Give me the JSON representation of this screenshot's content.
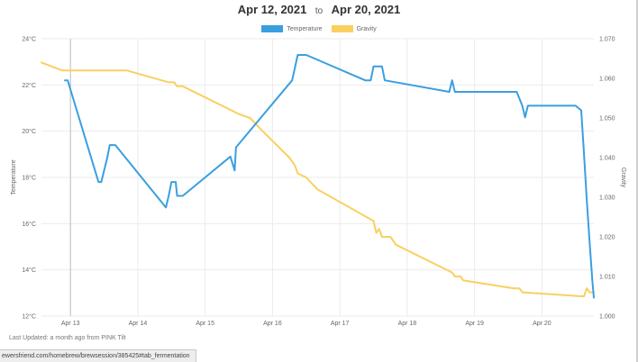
{
  "header": {
    "start_date": "Apr 12, 2021",
    "separator": "to",
    "end_date": "Apr 20, 2021"
  },
  "footer": {
    "last_updated": "Last Updated: a month ago from PINK Tilt"
  },
  "status_bar": {
    "url": "ewersfriend.com/homebrew/brewsession/385425#tab_fermentation"
  },
  "colors": {
    "temperature": "#3a9fe0",
    "gravity": "#f9d060",
    "grid": "#ebebeb",
    "cursor_line": "#bdbdbd"
  },
  "chart_data": {
    "type": "line",
    "title": "",
    "x_unit": "days",
    "x_range": [
      "Apr 12 13:40",
      "Apr 20 18:30"
    ],
    "x_tick_labels": [
      "Apr 13",
      "Apr 14",
      "Apr 15",
      "Apr 16",
      "Apr 17",
      "Apr 18",
      "Apr 19",
      "Apr 20"
    ],
    "left_axis": {
      "label": "Temperature",
      "ylim": [
        12,
        24
      ],
      "ticks": [
        "12°C",
        "14°C",
        "16°C",
        "18°C",
        "20°C",
        "22°C",
        "24°C"
      ]
    },
    "right_axis": {
      "label": "Gravity",
      "ylim": [
        1.0,
        1.07
      ],
      "ticks": [
        "1.000",
        "1.010",
        "1.020",
        "1.030",
        "1.040",
        "1.050",
        "1.060",
        "1.070"
      ]
    },
    "legend_position": "top-center",
    "series": [
      {
        "name": "Temperature",
        "axis": "left",
        "color": "#3a9fe0",
        "points": [
          [
            "Apr 12 22:00",
            22.2
          ],
          [
            "Apr 12 23:00",
            22.2
          ],
          [
            "Apr 13 00:00",
            21.8
          ],
          [
            "Apr 13 10:00",
            17.8
          ],
          [
            "Apr 13 11:00",
            17.8
          ],
          [
            "Apr 13 13:00",
            18.8
          ],
          [
            "Apr 13 14:00",
            19.4
          ],
          [
            "Apr 13 16:00",
            19.4
          ],
          [
            "Apr 14 10:00",
            16.7
          ],
          [
            "Apr 14 11:00",
            17.2
          ],
          [
            "Apr 14 12:00",
            17.8
          ],
          [
            "Apr 14 13:30",
            17.8
          ],
          [
            "Apr 14 14:00",
            17.2
          ],
          [
            "Apr 14 16:00",
            17.2
          ],
          [
            "Apr 15 09:00",
            18.9
          ],
          [
            "Apr 15 10:30",
            18.3
          ],
          [
            "Apr 15 11:00",
            19.3
          ],
          [
            "Apr 16 07:00",
            22.2
          ],
          [
            "Apr 16 09:00",
            23.3
          ],
          [
            "Apr 16 12:00",
            23.3
          ],
          [
            "Apr 17 09:00",
            22.2
          ],
          [
            "Apr 17 11:00",
            22.2
          ],
          [
            "Apr 17 12:00",
            22.8
          ],
          [
            "Apr 17 15:00",
            22.8
          ],
          [
            "Apr 17 16:00",
            22.2
          ],
          [
            "Apr 18 15:00",
            21.7
          ],
          [
            "Apr 18 16:00",
            22.2
          ],
          [
            "Apr 18 17:00",
            21.7
          ],
          [
            "Apr 19 15:00",
            21.7
          ],
          [
            "Apr 19 17:00",
            21.1
          ],
          [
            "Apr 19 18:00",
            20.6
          ],
          [
            "Apr 19 19:00",
            21.1
          ],
          [
            "Apr 20 12:00",
            21.1
          ],
          [
            "Apr 20 14:00",
            20.9
          ],
          [
            "Apr 20 15:00",
            19.0
          ],
          [
            "Apr 20 16:00",
            17.0
          ],
          [
            "Apr 20 17:00",
            15.2
          ],
          [
            "Apr 20 18:00",
            13.5
          ],
          [
            "Apr 20 18:30",
            12.8
          ]
        ]
      },
      {
        "name": "Gravity",
        "axis": "right",
        "color": "#f9d060",
        "points": [
          [
            "Apr 12 13:40",
            1.064
          ],
          [
            "Apr 12 21:00",
            1.062
          ],
          [
            "Apr 13 12:00",
            1.062
          ],
          [
            "Apr 13 20:00",
            1.062
          ],
          [
            "Apr 14 11:00",
            1.059
          ],
          [
            "Apr 14 13:00",
            1.059
          ],
          [
            "Apr 14 14:00",
            1.058
          ],
          [
            "Apr 14 16:00",
            1.058
          ],
          [
            "Apr 15 12:00",
            1.051
          ],
          [
            "Apr 15 16:00",
            1.05
          ],
          [
            "Apr 15 20:00",
            1.047
          ],
          [
            "Apr 16 06:00",
            1.04
          ],
          [
            "Apr 16 08:00",
            1.038
          ],
          [
            "Apr 16 09:00",
            1.036
          ],
          [
            "Apr 16 12:00",
            1.035
          ],
          [
            "Apr 16 16:00",
            1.032
          ],
          [
            "Apr 17 12:00",
            1.024
          ],
          [
            "Apr 17 13:00",
            1.021
          ],
          [
            "Apr 17 14:00",
            1.022
          ],
          [
            "Apr 17 15:00",
            1.02
          ],
          [
            "Apr 17 18:00",
            1.02
          ],
          [
            "Apr 17 20:00",
            1.018
          ],
          [
            "Apr 18 16:00",
            1.011
          ],
          [
            "Apr 18 17:00",
            1.01
          ],
          [
            "Apr 18 19:00",
            1.01
          ],
          [
            "Apr 18 20:00",
            1.009
          ],
          [
            "Apr 19 14:00",
            1.007
          ],
          [
            "Apr 19 16:00",
            1.007
          ],
          [
            "Apr 19 17:00",
            1.006
          ],
          [
            "Apr 20 14:00",
            1.005
          ],
          [
            "Apr 20 15:00",
            1.005
          ],
          [
            "Apr 20 16:00",
            1.007
          ],
          [
            "Apr 20 17:00",
            1.006
          ],
          [
            "Apr 20 18:30",
            1.006
          ]
        ]
      }
    ],
    "cursor_line_at": "Apr 13 00:00"
  }
}
